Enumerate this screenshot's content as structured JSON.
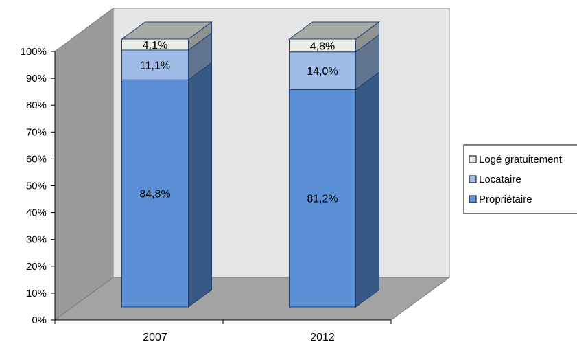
{
  "chart_data": {
    "type": "bar",
    "stacked": true,
    "three_d": true,
    "categories": [
      "2007",
      "2012"
    ],
    "series": [
      {
        "name": "Propriétaire",
        "values": [
          84.8,
          81.2
        ],
        "labels": [
          "84,8%",
          "81,2%"
        ],
        "color": "#5b8fd6"
      },
      {
        "name": "Locataire",
        "values": [
          11.1,
          14.0
        ],
        "labels": [
          "11,1%",
          "14,0%"
        ],
        "color": "#9dbbe6"
      },
      {
        "name": "Logé gratuitement",
        "values": [
          4.1,
          4.8
        ],
        "labels": [
          "4,1%",
          "4,8%"
        ],
        "color": "#e8ede8"
      }
    ],
    "yticks": [
      "0%",
      "10%",
      "20%",
      "30%",
      "40%",
      "50%",
      "60%",
      "70%",
      "80%",
      "90%",
      "100%"
    ],
    "ylim": [
      0,
      100
    ],
    "grid": false,
    "legend_position": "right",
    "legend_order": [
      "Logé gratuitement",
      "Locataire",
      "Propriétaire"
    ],
    "title": "",
    "xlabel": "",
    "ylabel": ""
  }
}
